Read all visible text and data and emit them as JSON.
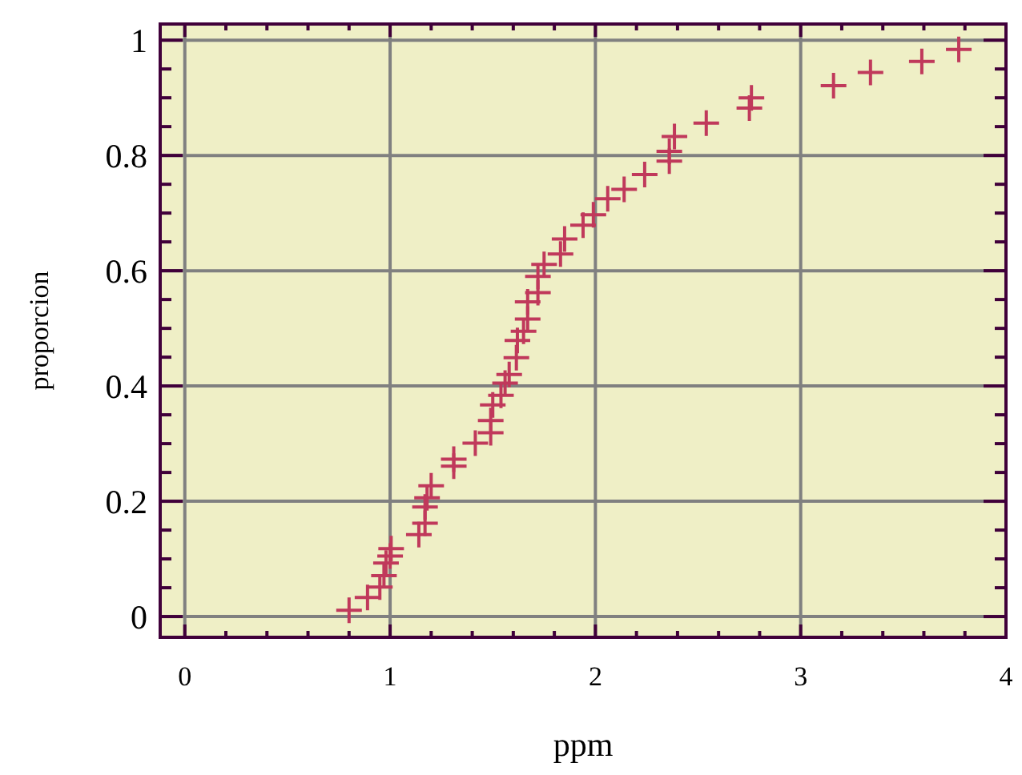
{
  "chart_data": {
    "type": "scatter",
    "xlabel": "ppm",
    "ylabel": "proporcion",
    "xlim": [
      -0.12,
      4
    ],
    "ylim": [
      -0.036,
      1.028
    ],
    "xticks": [
      0,
      {
        "value": 0.2,
        "label": null
      },
      {
        "value": 0.4,
        "label": null
      },
      {
        "value": 0.6,
        "label": null
      },
      {
        "value": 0.8,
        "label": null
      },
      1,
      {
        "value": 1.2,
        "label": null
      },
      {
        "value": 1.4,
        "label": null
      },
      {
        "value": 1.6,
        "label": null
      },
      {
        "value": 1.8,
        "label": null
      },
      2,
      {
        "value": 2.2,
        "label": null
      },
      {
        "value": 2.4,
        "label": null
      },
      {
        "value": 2.6,
        "label": null
      },
      {
        "value": 2.8,
        "label": null
      },
      3,
      {
        "value": 3.2,
        "label": null
      },
      {
        "value": 3.4,
        "label": null
      },
      {
        "value": 3.6,
        "label": null
      },
      {
        "value": 3.8,
        "label": null
      },
      4
    ],
    "yticks": [
      0,
      {
        "value": 0.05,
        "label": null
      },
      {
        "value": 0.1,
        "label": null
      },
      {
        "value": 0.15,
        "label": null
      },
      0.2,
      {
        "value": 0.25,
        "label": null
      },
      {
        "value": 0.3,
        "label": null
      },
      {
        "value": 0.35,
        "label": null
      },
      0.4,
      {
        "value": 0.45,
        "label": null
      },
      {
        "value": 0.5,
        "label": null
      },
      {
        "value": 0.55,
        "label": null
      },
      0.6,
      {
        "value": 0.65,
        "label": null
      },
      {
        "value": 0.7,
        "label": null
      },
      {
        "value": 0.75,
        "label": null
      },
      0.8,
      {
        "value": 0.85,
        "label": null
      },
      {
        "value": 0.9,
        "label": null
      },
      {
        "value": 0.95,
        "label": null
      },
      1
    ],
    "grid": true,
    "marker": "cross",
    "series": [
      {
        "color": "#c0395b",
        "x": [
          0.8,
          0.89,
          0.95,
          0.97,
          0.98,
          1.0,
          1.005,
          1.14,
          1.17,
          1.17,
          1.18,
          1.2,
          1.31,
          1.31,
          1.415,
          1.49,
          1.49,
          1.5,
          1.54,
          1.56,
          1.58,
          1.615,
          1.62,
          1.65,
          1.67,
          1.67,
          1.72,
          1.72,
          1.75,
          1.83,
          1.85,
          1.94,
          1.99,
          2.06,
          2.14,
          2.24,
          2.36,
          2.36,
          2.385,
          2.54,
          2.75,
          2.76,
          3.16,
          3.34,
          3.59,
          3.77
        ],
        "values": [
          0.011,
          0.033,
          0.051,
          0.071,
          0.093,
          0.105,
          0.118,
          0.142,
          0.162,
          0.19,
          0.206,
          0.227,
          0.261,
          0.273,
          0.301,
          0.319,
          0.34,
          0.367,
          0.384,
          0.405,
          0.42,
          0.449,
          0.479,
          0.495,
          0.516,
          0.546,
          0.562,
          0.59,
          0.611,
          0.629,
          0.655,
          0.679,
          0.697,
          0.725,
          0.741,
          0.767,
          0.79,
          0.807,
          0.833,
          0.856,
          0.882,
          0.9,
          0.921,
          0.944,
          0.963,
          0.984
        ]
      }
    ]
  }
}
